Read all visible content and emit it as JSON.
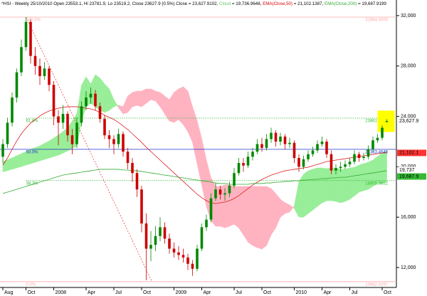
{
  "chart_data": {
    "type": "candlestick",
    "header": [
      {
        "text": "^HSI - Weekly 25/10/2010 Open 23553.1, Hi 23781.9, Lo 23519.2, Close 23627.9 (0.5%) Close = 23,627.9102, ",
        "color": "#000000"
      },
      {
        "text": "Cloud",
        "color": "#66cc66"
      },
      {
        "text": " = 19,736.9648, ",
        "color": "#000000"
      },
      {
        "text": "EMA(Close,50)",
        "color": "#dd0000"
      },
      {
        "text": " = 21,102.1387, ",
        "color": "#000000"
      },
      {
        "text": "EMA(Close,200)",
        "color": "#33aa33"
      },
      {
        "text": " = 19,687.9199",
        "color": "#000000"
      }
    ],
    "categories": [
      "Aug",
      null,
      null,
      null,
      null,
      "Oct",
      null,
      null,
      null,
      null,
      null,
      "2008",
      null,
      null,
      null,
      null,
      null,
      null,
      "Apr",
      null,
      null,
      null,
      null,
      null,
      "Jul",
      null,
      null,
      null,
      null,
      null,
      "Oct",
      null,
      null,
      null,
      null,
      null,
      null,
      "2009",
      null,
      null,
      null,
      null,
      null,
      "Apr",
      null,
      null,
      null,
      null,
      null,
      null,
      "Jul",
      null,
      null,
      null,
      null,
      null,
      "Oct",
      null,
      null,
      null,
      null,
      null,
      null,
      "2010",
      null,
      null,
      null,
      null,
      null,
      "Apr",
      null,
      null,
      null,
      null,
      null,
      "Jul",
      null,
      null,
      null,
      null,
      null,
      null,
      "Oct",
      null
    ],
    "ohlc": [
      [
        20800,
        22200,
        20300,
        21800
      ],
      [
        21800,
        23900,
        21500,
        23500
      ],
      [
        23500,
        25900,
        23200,
        25500
      ],
      [
        25500,
        27800,
        25100,
        27500
      ],
      [
        27500,
        30100,
        27200,
        29500
      ],
      [
        29500,
        31884,
        29200,
        31500
      ],
      [
        31500,
        31700,
        28200,
        28800
      ],
      [
        28800,
        29500,
        27300,
        28000
      ],
      [
        28000,
        28600,
        26500,
        27200
      ],
      [
        27200,
        28300,
        26900,
        27800
      ],
      [
        27800,
        28000,
        26000,
        26500
      ],
      [
        26500,
        26800,
        23300,
        24000
      ],
      [
        24000,
        24500,
        21700,
        23500
      ],
      [
        23500,
        24900,
        23000,
        24200
      ],
      [
        24200,
        24400,
        22000,
        22500
      ],
      [
        22500,
        23000,
        21000,
        21800
      ],
      [
        21800,
        23900,
        21500,
        23500
      ],
      [
        23500,
        25200,
        23200,
        24800
      ],
      [
        24800,
        26000,
        24500,
        25500
      ],
      [
        25500,
        26300,
        25000,
        25800
      ],
      [
        25800,
        26100,
        24500,
        24800
      ],
      [
        24800,
        25100,
        23500,
        23800
      ],
      [
        23800,
        24100,
        22200,
        22500
      ],
      [
        22500,
        22900,
        21500,
        22200
      ],
      [
        22200,
        22500,
        21000,
        21800
      ],
      [
        21800,
        23000,
        21500,
        22600
      ],
      [
        22600,
        22800,
        20800,
        21200
      ],
      [
        21200,
        21500,
        19800,
        20300
      ],
      [
        20300,
        20700,
        18800,
        19500
      ],
      [
        19500,
        19800,
        17600,
        18200
      ],
      [
        18200,
        18500,
        14800,
        15500
      ],
      [
        15500,
        16300,
        11000,
        13500
      ],
      [
        13500,
        14900,
        12500,
        13800
      ],
      [
        13800,
        15300,
        13300,
        14500
      ],
      [
        14500,
        16000,
        14100,
        15200
      ],
      [
        15200,
        15600,
        13900,
        14300
      ],
      [
        14300,
        14700,
        13100,
        13500
      ],
      [
        13500,
        14000,
        12800,
        13200
      ],
      [
        13200,
        13700,
        12600,
        13000
      ],
      [
        13000,
        13500,
        12400,
        12800
      ],
      [
        12800,
        13100,
        11800,
        12300
      ],
      [
        12300,
        12600,
        11344,
        11900
      ],
      [
        11900,
        13800,
        11700,
        13500
      ],
      [
        13500,
        15500,
        13300,
        15200
      ],
      [
        15200,
        16200,
        14900,
        15800
      ],
      [
        15800,
        17900,
        15600,
        17500
      ],
      [
        17500,
        18700,
        17300,
        18200
      ],
      [
        18200,
        18500,
        17400,
        17800
      ],
      [
        17800,
        18300,
        17300,
        17900
      ],
      [
        17900,
        18800,
        17600,
        18500
      ],
      [
        18500,
        19900,
        18300,
        19500
      ],
      [
        19500,
        20700,
        19300,
        20300
      ],
      [
        20300,
        20700,
        19600,
        20100
      ],
      [
        20100,
        21200,
        19900,
        20800
      ],
      [
        20800,
        21500,
        20500,
        21200
      ],
      [
        21200,
        22200,
        21000,
        21800
      ],
      [
        21800,
        22300,
        21200,
        21500
      ],
      [
        21500,
        22600,
        21300,
        22200
      ],
      [
        22200,
        23100,
        21900,
        22700
      ],
      [
        22700,
        22900,
        21600,
        22000
      ],
      [
        22000,
        22700,
        21700,
        22400
      ],
      [
        22400,
        22600,
        21400,
        21800
      ],
      [
        21800,
        22300,
        21500,
        21900
      ],
      [
        21900,
        22100,
        20300,
        20700
      ],
      [
        20700,
        21000,
        19600,
        20000
      ],
      [
        20000,
        20900,
        19800,
        20600
      ],
      [
        20600,
        21300,
        20400,
        21000
      ],
      [
        21000,
        21600,
        20800,
        21300
      ],
      [
        21300,
        22100,
        21100,
        21800
      ],
      [
        21800,
        22400,
        21600,
        22000
      ],
      [
        22000,
        22200,
        20700,
        21000
      ],
      [
        21000,
        21300,
        19400,
        19700
      ],
      [
        19700,
        20200,
        19400,
        19900
      ],
      [
        19900,
        20400,
        19600,
        20000
      ],
      [
        20000,
        20500,
        19800,
        20200
      ],
      [
        20200,
        20700,
        20000,
        20400
      ],
      [
        20400,
        21300,
        20200,
        21000
      ],
      [
        21000,
        21200,
        20400,
        20700
      ],
      [
        20700,
        21100,
        20500,
        20800
      ],
      [
        20800,
        21700,
        20600,
        21400
      ],
      [
        21400,
        22400,
        21200,
        22100
      ],
      [
        22100,
        22600,
        21900,
        22300
      ],
      [
        22300,
        23300,
        22100,
        23100
      ],
      [
        23553.1,
        23781.9,
        23519.2,
        23627.9
      ]
    ],
    "up_color": "#008800",
    "down_color": "#cc0000",
    "span_a": [
      20400,
      20550,
      20700,
      20870,
      21040,
      21210,
      21380,
      21520,
      21660,
      21850,
      22050,
      22280,
      22510,
      22790,
      23070,
      23630,
      24200,
      26460,
      27140,
      26570,
      27310,
      27030,
      26570,
      26180,
      25330,
      24700,
      24200,
      24320,
      24770,
      24880,
      24770,
      25050,
      25330,
      25220,
      24770,
      24200,
      23640,
      23520,
      23750,
      23350,
      22790,
      21940,
      20250,
      18550,
      16860,
      15730,
      15280,
      15280,
      15160,
      15280,
      15450,
      15160,
      14600,
      14030,
      13750,
      13580,
      13470,
      13750,
      14600,
      15160,
      16010,
      16290,
      16410,
      16900,
      18830,
      19400,
      19680,
      19800,
      19910,
      19910,
      19850,
      19910,
      19910,
      19800,
      19800,
      19910,
      19960,
      20130,
      20250,
      20360,
      20530,
      20810,
      21100,
      21260
    ],
    "span_b": [
      19600,
      19700,
      19800,
      19910,
      20020,
      20140,
      20250,
      20360,
      20470,
      20590,
      20700,
      20810,
      20920,
      21090,
      21260,
      21460,
      21660,
      23640,
      24770,
      25050,
      24770,
      24480,
      24320,
      24480,
      24770,
      24900,
      24770,
      25610,
      25900,
      26010,
      26010,
      26180,
      26180,
      26010,
      25900,
      25610,
      25330,
      25900,
      26180,
      26350,
      26010,
      24770,
      23640,
      22220,
      20530,
      19120,
      18440,
      18440,
      18550,
      18550,
      18440,
      18440,
      18440,
      18440,
      18440,
      18440,
      18440,
      18440,
      18270,
      17870,
      17420,
      17140,
      16970,
      16700,
      16010,
      16010,
      16290,
      16570,
      16860,
      17140,
      17310,
      17310,
      17250,
      17140,
      17250,
      17420,
      17700,
      17990,
      18100,
      18210,
      18440,
      18670,
      18670,
      18830
    ],
    "cloud_up_color": "#99ee99",
    "cloud_down_color": "#ffb3c1",
    "series": [
      {
        "name": "EMA(Close,50)",
        "color": "#dd2222",
        "values": [
          20130,
          20700,
          21380,
          22050,
          22620,
          23070,
          23470,
          23750,
          24030,
          24260,
          24430,
          24540,
          24650,
          24710,
          24770,
          24770,
          24770,
          24710,
          24650,
          24600,
          24480,
          24320,
          24090,
          23920,
          23750,
          23520,
          23240,
          22960,
          22620,
          22280,
          21940,
          21550,
          21210,
          20870,
          20530,
          20190,
          19850,
          19510,
          19170,
          18840,
          18500,
          18160,
          17820,
          17540,
          17310,
          17140,
          17080,
          17140,
          17200,
          17310,
          17480,
          17710,
          17990,
          18270,
          18550,
          18780,
          19000,
          19170,
          19340,
          19460,
          19570,
          19680,
          19740,
          19800,
          19850,
          19910,
          19970,
          20080,
          20190,
          20300,
          20420,
          20470,
          20530,
          20590,
          20640,
          20700,
          20760,
          20810,
          20870,
          20930,
          20980,
          21040,
          21100,
          21102.1
        ]
      },
      {
        "name": "EMA(Close,200)",
        "color": "#33aa33",
        "values": [
          17880,
          17990,
          18100,
          18210,
          18330,
          18440,
          18550,
          18670,
          18780,
          18890,
          19000,
          19120,
          19230,
          19340,
          19400,
          19460,
          19510,
          19570,
          19630,
          19680,
          19740,
          19800,
          19800,
          19800,
          19800,
          19800,
          19740,
          19740,
          19680,
          19680,
          19630,
          19570,
          19510,
          19460,
          19400,
          19340,
          19290,
          19230,
          19170,
          19120,
          19060,
          19000,
          18950,
          18890,
          18840,
          18780,
          18720,
          18670,
          18670,
          18610,
          18610,
          18610,
          18610,
          18610,
          18670,
          18670,
          18670,
          18720,
          18720,
          18780,
          18780,
          18840,
          18840,
          18890,
          18890,
          18950,
          18950,
          19000,
          19000,
          19060,
          19060,
          19120,
          19120,
          19170,
          19170,
          19230,
          19290,
          19340,
          19400,
          19460,
          19510,
          19570,
          19630,
          19687.9
        ]
      }
    ],
    "fib_levels": [
      {
        "name": "100.0%",
        "value": 31884,
        "label": "31884.0000",
        "color": "#ffaaaa",
        "dash": false
      },
      {
        "name": "61.8%",
        "value": 23861.5677,
        "label": "23861.5677",
        "color": "#33bb33",
        "dash": true
      },
      {
        "name": "50.0%",
        "value": 21383.4648,
        "label": "21383.4648",
        "color": "#2233cc",
        "dash": false
      },
      {
        "name": "38.2%",
        "value": 18905.3652,
        "label": "18905.3652",
        "color": "#33bb33",
        "dash": true
      },
      {
        "name": "0.0%",
        "value": 10882.9297,
        "label": "10882.9297",
        "color": "#ffaaaa",
        "dash": false
      }
    ],
    "fib_trend_color": "#ee4444",
    "last_values": [
      {
        "value": 23627.9102,
        "label": "23,627.9",
        "color": "#ffffff"
      },
      {
        "value": 21102.1387,
        "label": "21,102.1",
        "color": "#ff3333"
      },
      {
        "value": 19736.9648,
        "label": "19,737",
        "color": "#ffffff"
      },
      {
        "value": 19687.9199,
        "label": "19,687.9",
        "color": "#33bb33"
      }
    ],
    "highlight_color": "#ffff00",
    "ylim": [
      10420,
      33240
    ],
    "yticks": [
      {
        "value": 12000,
        "label": "12,000"
      },
      {
        "value": 16000,
        "label": "16,000"
      },
      {
        "value": 20000,
        "label": "20,000"
      },
      {
        "value": 24000,
        "label": "24,000"
      },
      {
        "value": 28000,
        "label": "28,000"
      },
      {
        "value": 32000,
        "label": "32,000"
      }
    ]
  }
}
